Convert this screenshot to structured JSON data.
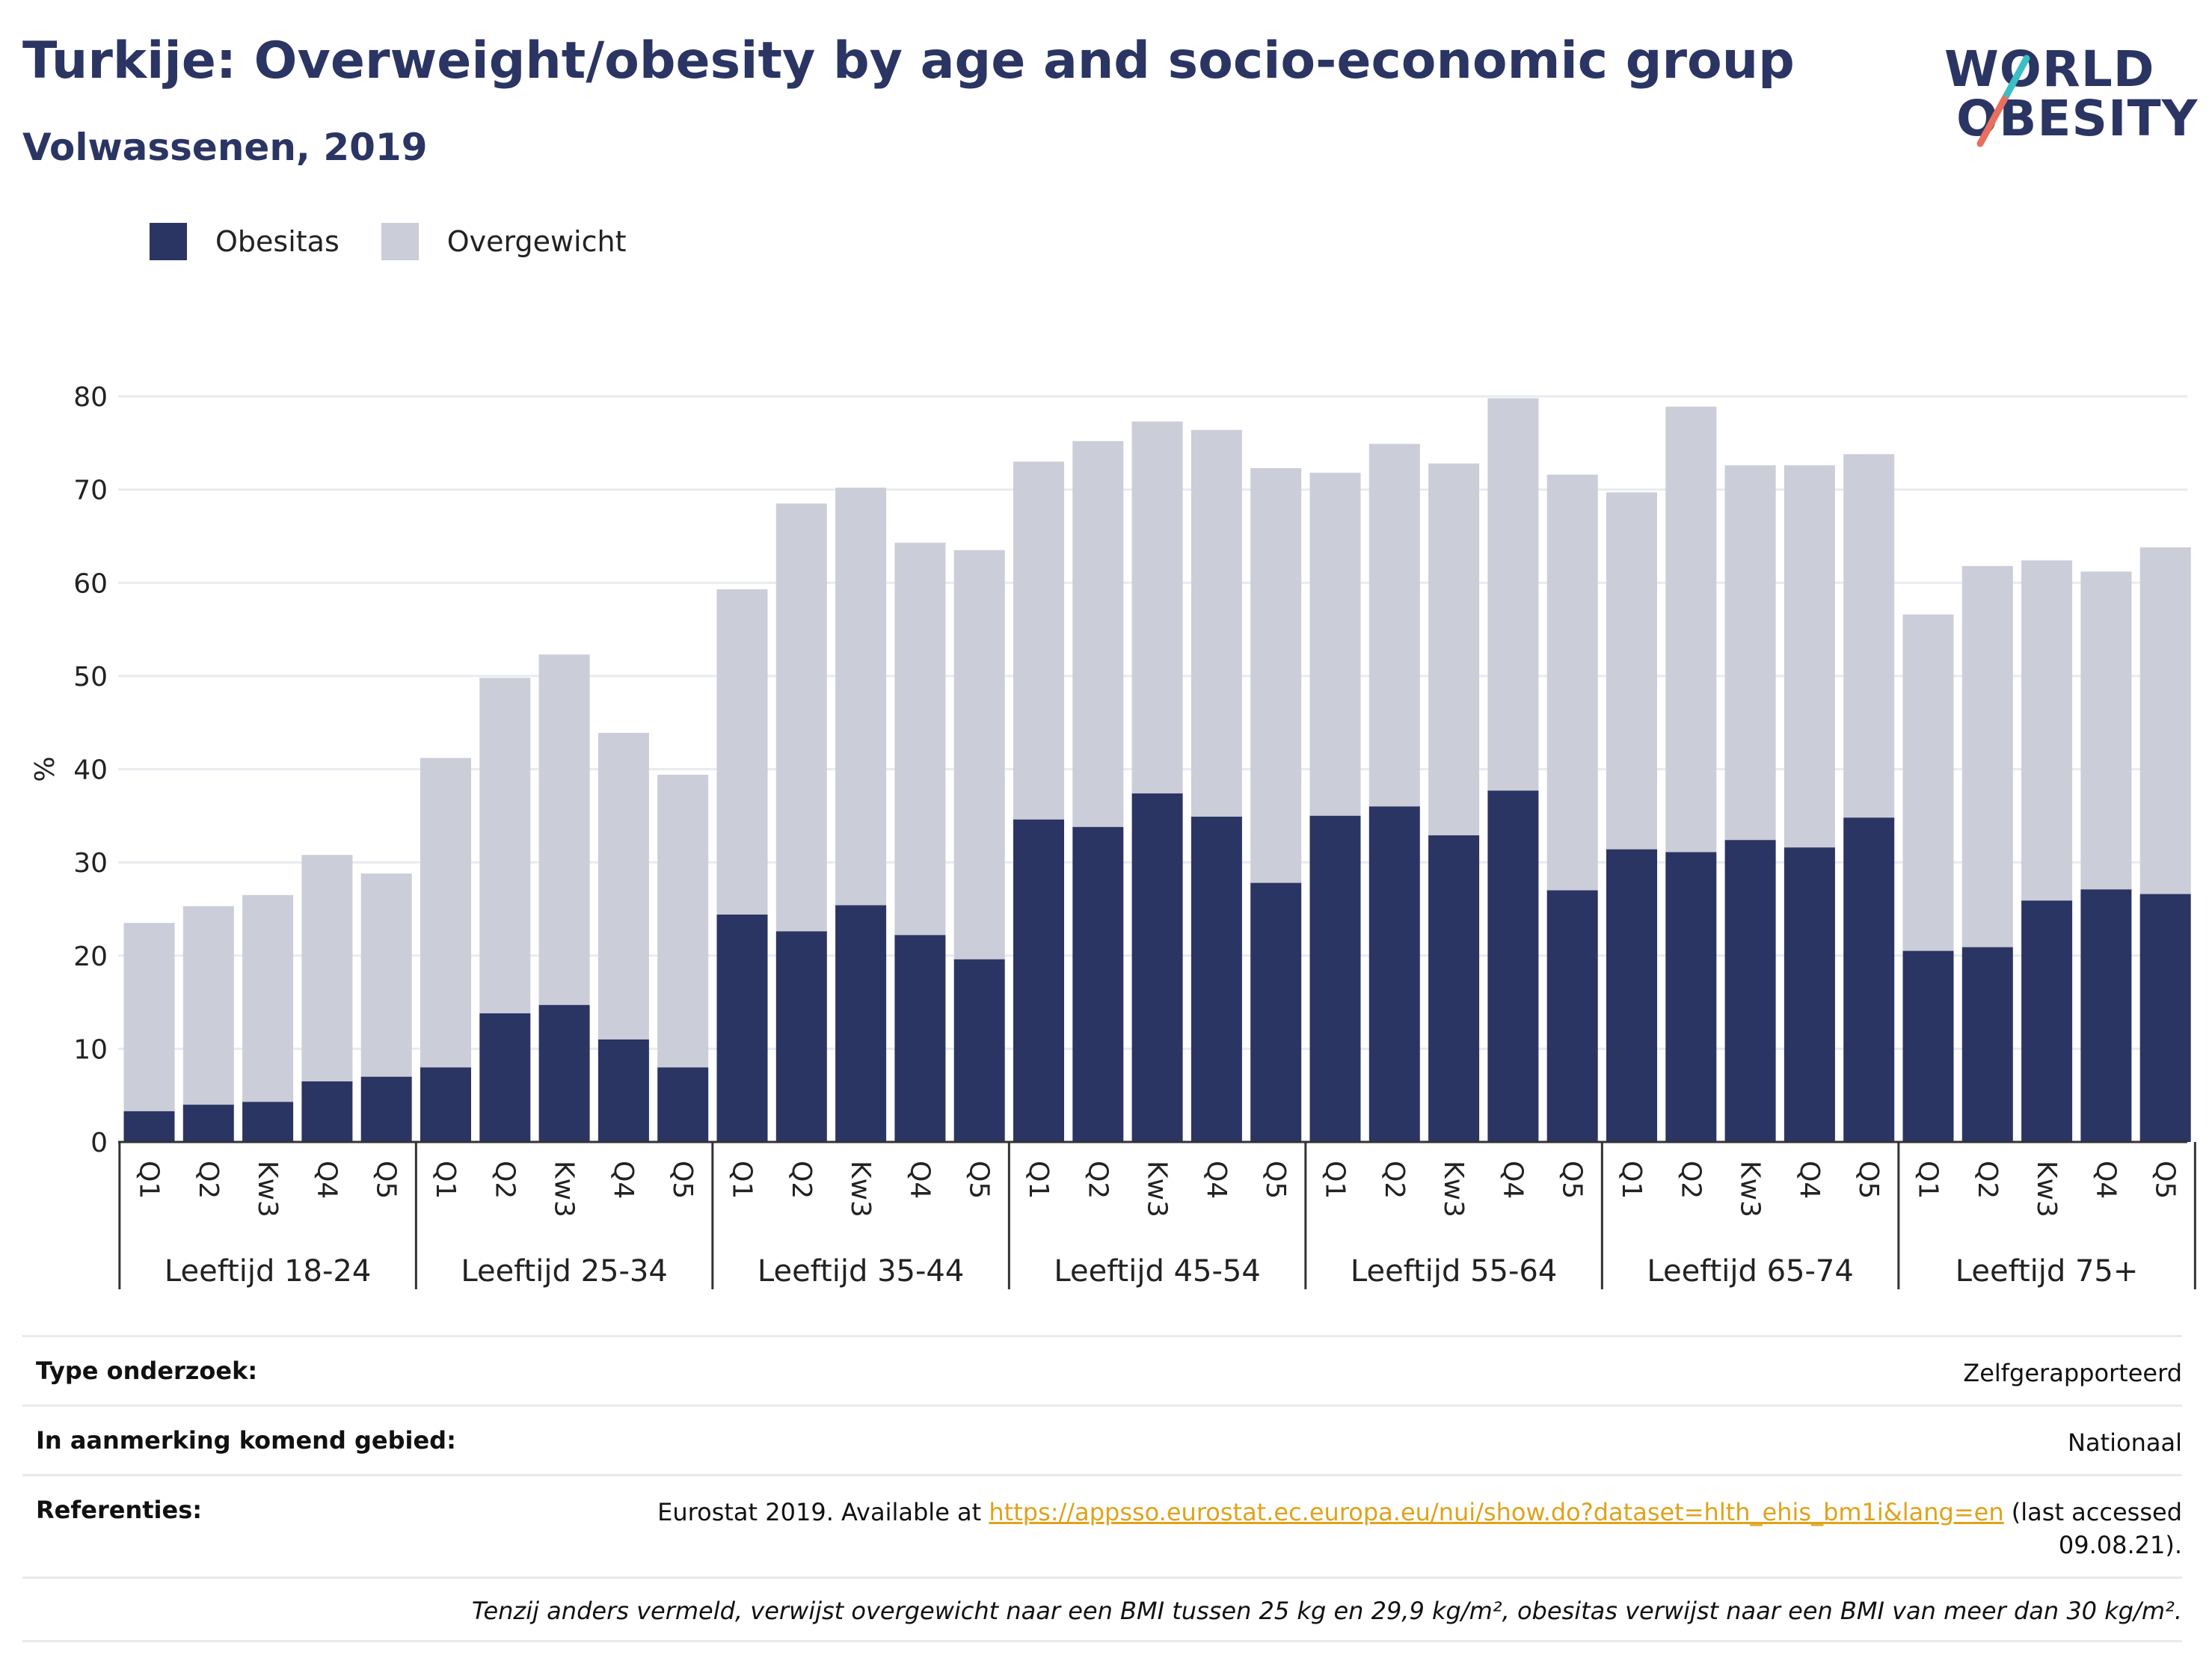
{
  "header": {
    "title": "Turkije: Overweight/obesity by age and socio-economic group",
    "subtitle": "Volwassenen, 2019"
  },
  "logo": {
    "line1": "WORLD",
    "line2": "OBESITY"
  },
  "colors": {
    "obesity": "#2b3563",
    "overweight": "#cbcdd9",
    "brand": "#2b3563",
    "accent_teal": "#3bbfc4",
    "accent_coral": "#e86f5e",
    "link": "#e0a21a"
  },
  "chart_data": {
    "type": "bar",
    "stacked": true,
    "ylabel": "%",
    "ylim": [
      0,
      80
    ],
    "yticks": [
      0,
      10,
      20,
      30,
      40,
      50,
      60,
      70,
      80
    ],
    "legend_position": "top-left",
    "grid": true,
    "groups": [
      {
        "label": "Leeftijd 18-24",
        "categories": [
          "Q1",
          "Q2",
          "Kw3",
          "Q4",
          "Q5"
        ],
        "obesity": [
          3.3,
          4.0,
          4.3,
          6.5,
          7.0
        ],
        "total": [
          23.5,
          25.3,
          26.5,
          30.8,
          28.8
        ]
      },
      {
        "label": "Leeftijd 25-34",
        "categories": [
          "Q1",
          "Q2",
          "Kw3",
          "Q4",
          "Q5"
        ],
        "obesity": [
          8.0,
          13.8,
          14.7,
          11.0,
          8.0
        ],
        "total": [
          41.2,
          49.8,
          52.3,
          43.9,
          39.4
        ]
      },
      {
        "label": "Leeftijd 35-44",
        "categories": [
          "Q1",
          "Q2",
          "Kw3",
          "Q4",
          "Q5"
        ],
        "obesity": [
          24.4,
          22.6,
          25.4,
          22.2,
          19.6
        ],
        "total": [
          59.3,
          68.5,
          70.2,
          64.3,
          63.5
        ]
      },
      {
        "label": "Leeftijd 45-54",
        "categories": [
          "Q1",
          "Q2",
          "Kw3",
          "Q4",
          "Q5"
        ],
        "obesity": [
          34.6,
          33.8,
          37.4,
          34.9,
          27.8
        ],
        "total": [
          73.0,
          75.2,
          77.3,
          76.4,
          72.3
        ]
      },
      {
        "label": "Leeftijd 55-64",
        "categories": [
          "Q1",
          "Q2",
          "Kw3",
          "Q4",
          "Q5"
        ],
        "obesity": [
          35.0,
          36.0,
          32.9,
          37.7,
          27.0
        ],
        "total": [
          71.8,
          74.9,
          72.8,
          79.8,
          71.6
        ]
      },
      {
        "label": "Leeftijd 65-74",
        "categories": [
          "Q1",
          "Q2",
          "Kw3",
          "Q4",
          "Q5"
        ],
        "obesity": [
          31.4,
          31.1,
          32.4,
          31.6,
          34.8
        ],
        "total": [
          69.7,
          78.9,
          72.6,
          72.6,
          73.8
        ]
      },
      {
        "label": "Leeftijd 75+",
        "categories": [
          "Q1",
          "Q2",
          "Kw3",
          "Q4",
          "Q5"
        ],
        "obesity": [
          20.5,
          20.9,
          25.9,
          27.1,
          26.6
        ],
        "total": [
          56.6,
          61.8,
          62.4,
          61.2,
          63.8
        ]
      }
    ],
    "series": [
      {
        "name": "Obesitas",
        "key": "obesity"
      },
      {
        "name": "Overgewicht",
        "key": "overweight"
      }
    ]
  },
  "meta": {
    "rows": [
      {
        "key": "Type onderzoek:",
        "value": "Zelfgerapporteerd"
      },
      {
        "key": "In aanmerking komend gebied:",
        "value": "Nationaal"
      }
    ],
    "references": {
      "key": "Referenties:",
      "prefix": "Eurostat 2019. Available at ",
      "link": "https://appsso.eurostat.ec.europa.eu/nui/show.do?dataset=hlth_ehis_bm1i&lang=en",
      "suffix": " (last accessed 09.08.21)."
    },
    "note": "Tenzij anders vermeld, verwijst overgewicht naar een BMI tussen 25 kg en 29,9 kg/m², obesitas verwijst naar een BMI van meer dan 30 kg/m²."
  }
}
